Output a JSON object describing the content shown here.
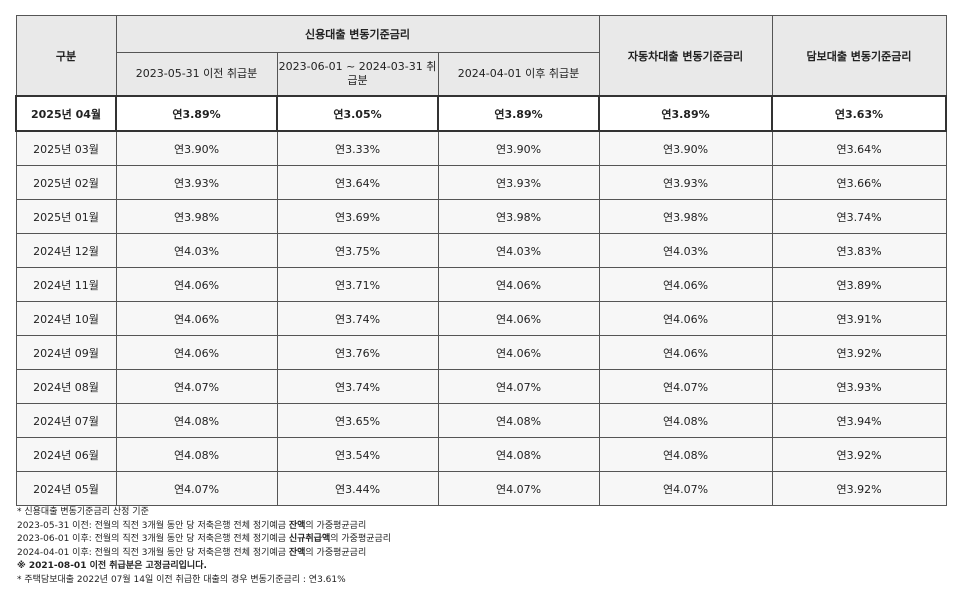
{
  "table": {
    "header": {
      "col0": "구분",
      "group": "신용대출 변동기준금리",
      "sub": [
        "2023-05-31 이전 취급분",
        "2023-06-01 ~ 2024-03-31 취급분",
        "2024-04-01 이후 취급분"
      ],
      "col4": "자동차대출 변동기준금리",
      "col5": "담보대출 변동기준금리"
    },
    "rows": [
      [
        "2025년 04월",
        "연3.89%",
        "연3.05%",
        "연3.89%",
        "연3.89%",
        "연3.63%"
      ],
      [
        "2025년 03월",
        "연3.90%",
        "연3.33%",
        "연3.90%",
        "연3.90%",
        "연3.64%"
      ],
      [
        "2025년 02월",
        "연3.93%",
        "연3.64%",
        "연3.93%",
        "연3.93%",
        "연3.66%"
      ],
      [
        "2025년 01월",
        "연3.98%",
        "연3.69%",
        "연3.98%",
        "연3.98%",
        "연3.74%"
      ],
      [
        "2024년 12월",
        "연4.03%",
        "연3.75%",
        "연4.03%",
        "연4.03%",
        "연3.83%"
      ],
      [
        "2024년 11월",
        "연4.06%",
        "연3.71%",
        "연4.06%",
        "연4.06%",
        "연3.89%"
      ],
      [
        "2024년 10월",
        "연4.06%",
        "연3.74%",
        "연4.06%",
        "연4.06%",
        "연3.91%"
      ],
      [
        "2024년 09월",
        "연4.06%",
        "연3.76%",
        "연4.06%",
        "연4.06%",
        "연3.92%"
      ],
      [
        "2024년 08월",
        "연4.07%",
        "연3.74%",
        "연4.07%",
        "연4.07%",
        "연3.93%"
      ],
      [
        "2024년 07월",
        "연4.08%",
        "연3.65%",
        "연4.08%",
        "연4.08%",
        "연3.94%"
      ],
      [
        "2024년 06월",
        "연4.08%",
        "연3.54%",
        "연4.08%",
        "연4.08%",
        "연3.92%"
      ],
      [
        "2024년 05월",
        "연4.07%",
        "연3.44%",
        "연4.07%",
        "연4.07%",
        "연3.92%"
      ]
    ]
  },
  "notes": [
    [
      "* 신용대출 변동기준금리 산정 기준"
    ],
    [
      "2023-05-31 이전: 전월의 직전 3개월 동안 당 저축은행 전체 정기예금 ",
      "잔액",
      "의 가중평균금리"
    ],
    [
      "2023-06-01 이후: 전월의 직전 3개월 동안 당 저축은행 전체 정기예금 ",
      "신규취급액",
      "의 가중평균금리"
    ],
    [
      "2024-04-01 이후: 전월의 직전 3개월 동안 당 저축은행 전체 정기예금 ",
      "잔액",
      "의 가중평균금리"
    ],
    [
      "※ 2021-08-01 이전 취급분은 고정금리입니다."
    ],
    [
      "* 주택담보대출 2022년 07월 14일 이전 취급한 대출의 경우 변동기준금리 : 연3.61%"
    ]
  ]
}
